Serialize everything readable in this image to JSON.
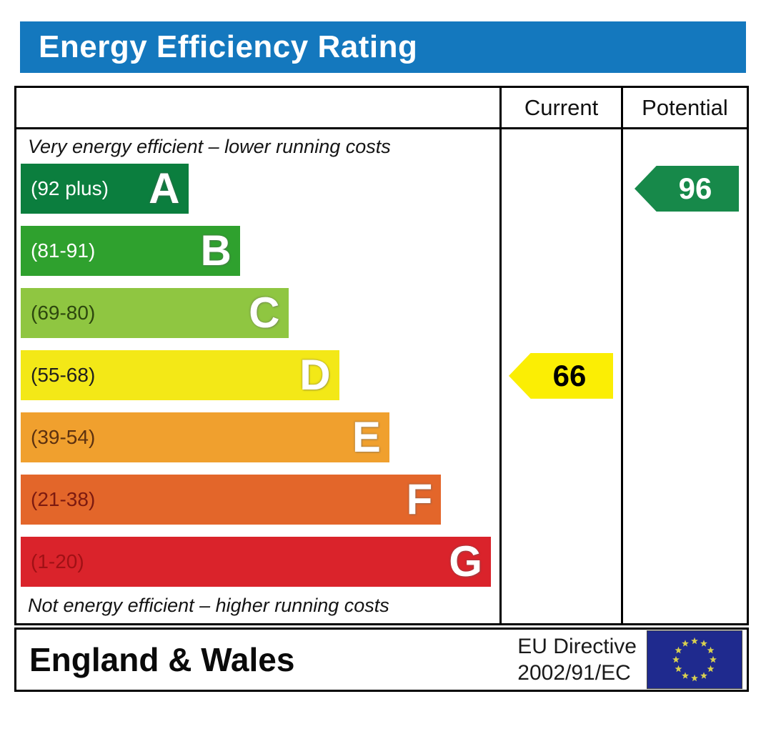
{
  "title": "Energy Efficiency Rating",
  "header": {
    "current": "Current",
    "potential": "Potential"
  },
  "captions": {
    "top": "Very energy efficient – lower running costs",
    "bottom": "Not energy efficient – higher running costs"
  },
  "bands": [
    {
      "letter": "A",
      "range": "(92 plus)",
      "color": "#0b7e3e",
      "label_color": "#ffffff",
      "width_pct": 35.0
    },
    {
      "letter": "B",
      "range": "(81-91)",
      "color": "#2fa12e",
      "label_color": "#ffffff",
      "width_pct": 45.8
    },
    {
      "letter": "C",
      "range": "(69-80)",
      "color": "#8fc641",
      "label_color": "#2d470e",
      "width_pct": 55.9
    },
    {
      "letter": "D",
      "range": "(55-68)",
      "color": "#f3e817",
      "label_color": "#1f1f1f",
      "width_pct": 66.5
    },
    {
      "letter": "E",
      "range": "(39-54)",
      "color": "#f0a02e",
      "label_color": "#5c3110",
      "width_pct": 77.0
    },
    {
      "letter": "F",
      "range": "(21-38)",
      "color": "#e3662a",
      "label_color": "#7c1a10",
      "width_pct": 87.8
    },
    {
      "letter": "G",
      "range": "(1-20)",
      "color": "#da232b",
      "label_color": "#a01115",
      "width_pct": 98.2
    }
  ],
  "ratings": {
    "current": {
      "value": "66",
      "band": "D",
      "band_index": 3,
      "color": "#fbee04",
      "text_color": "#000000"
    },
    "potential": {
      "value": "96",
      "band": "A",
      "band_index": 0,
      "color": "#17894a",
      "text_color": "#ffffff"
    }
  },
  "footer": {
    "region": "England & Wales",
    "directive_line1": "EU Directive",
    "directive_line2": "2002/91/EC"
  },
  "colors": {
    "title_bar": "#1478be",
    "border": "#000000",
    "flag_blue": "#1f2a8e",
    "flag_star": "#d8d050"
  },
  "chart_data": {
    "type": "bar",
    "title": "Energy Efficiency Rating",
    "orientation": "horizontal",
    "categories": [
      "A",
      "B",
      "C",
      "D",
      "E",
      "F",
      "G"
    ],
    "band_score_ranges": [
      "92 plus",
      "81-91",
      "69-80",
      "55-68",
      "39-54",
      "21-38",
      "1-20"
    ],
    "band_colors": [
      "#0b7e3e",
      "#2fa12e",
      "#8fc641",
      "#f3e817",
      "#f0a02e",
      "#e3662a",
      "#da232b"
    ],
    "bar_widths_pct": [
      35.0,
      45.8,
      55.9,
      66.5,
      77.0,
      87.8,
      98.2
    ],
    "series": [
      {
        "name": "Current",
        "value": 66,
        "band": "D"
      },
      {
        "name": "Potential",
        "value": 96,
        "band": "A"
      }
    ],
    "value_scale": [
      1,
      100
    ],
    "top_annotation": "Very energy efficient – lower running costs",
    "bottom_annotation": "Not energy efficient – higher running costs",
    "region": "England & Wales",
    "directive": "EU Directive 2002/91/EC"
  }
}
